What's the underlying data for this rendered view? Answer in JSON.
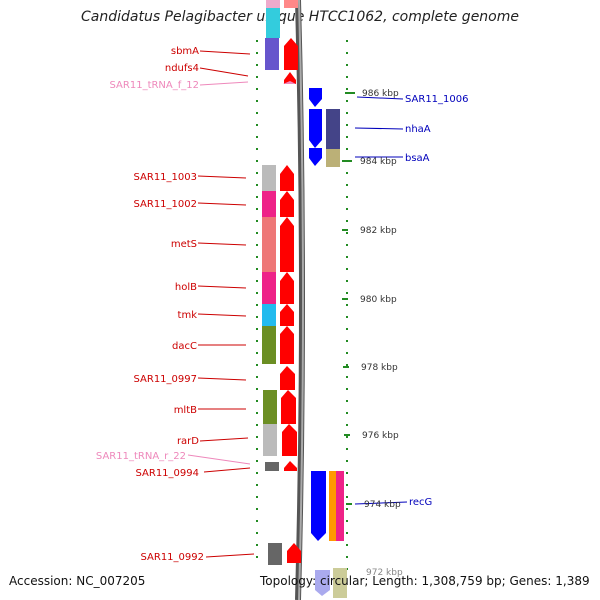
{
  "title": "Candidatus Pelagibacter ubique HTCC1062, complete genome",
  "footer": {
    "accession": "Accession: NC_007205",
    "summary": "Topology: circular; Length: 1,308,759 bp; Genes: 1,389"
  },
  "colors": {
    "red_label": "#cc0000",
    "pink_label": "#ee88bb",
    "blue_label": "#0000bb",
    "tick": "#228b22",
    "arrow_red": "#ff0000",
    "arrow_blue": "#0000ff"
  },
  "kbp_labels": [
    "986 kbp",
    "984 kbp",
    "982 kbp",
    "980 kbp",
    "978 kbp",
    "976 kbp",
    "974 kbp",
    "972 kbp"
  ],
  "left_genes": [
    "sbmA",
    "ndufs4",
    "SAR11_tRNA_f_12",
    "SAR11_1003",
    "SAR11_1002",
    "metS",
    "holB",
    "tmk",
    "dacC",
    "SAR11_0997",
    "mltB",
    "rarD",
    "SAR11_tRNA_r_22",
    "SAR11_0994",
    "SAR11_0992"
  ],
  "right_genes": [
    "SAR11_1006",
    "nhaA",
    "bsaA",
    "recG"
  ]
}
